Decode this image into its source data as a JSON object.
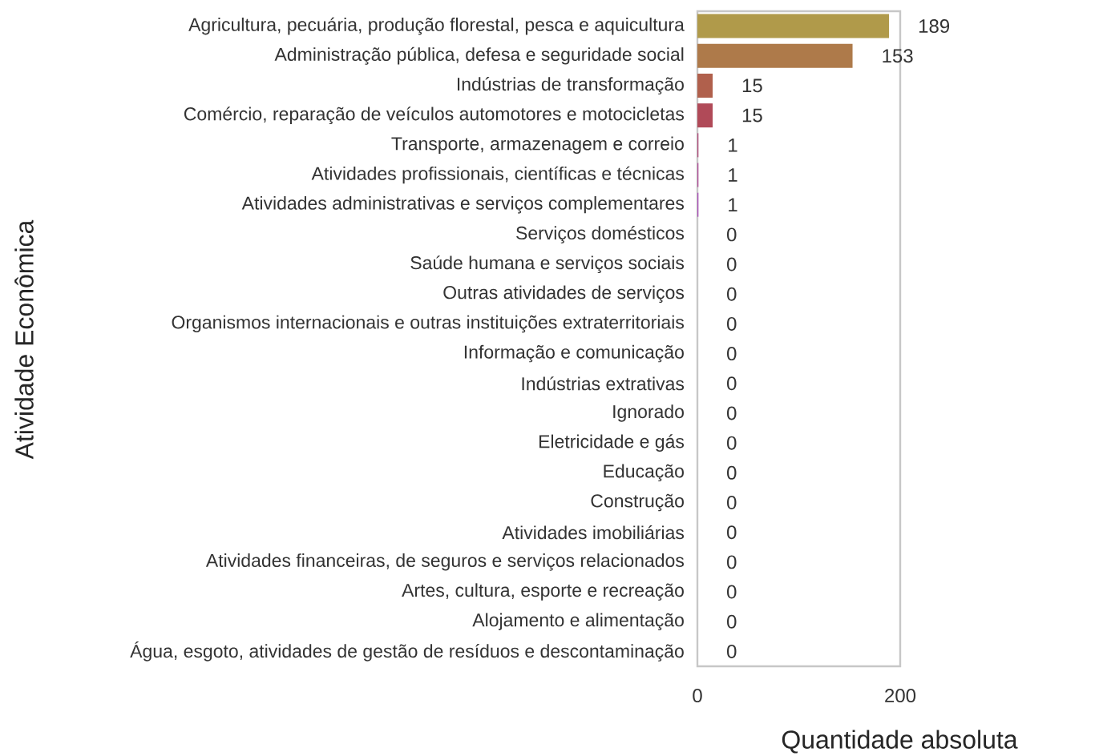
{
  "chart_data": {
    "type": "bar",
    "orientation": "horizontal",
    "xlabel": "Quantidade absoluta",
    "ylabel": "Atividade Econômica",
    "categories": [
      "Agricultura, pecuária, produção florestal, pesca e aquicultura",
      "Administração pública, defesa e seguridade social",
      "Indústrias de transformação",
      "Comércio, reparação de veículos automotores e motocicletas",
      "Transporte, armazenagem e correio",
      "Atividades profissionais, científicas e técnicas",
      "Atividades administrativas e serviços complementares",
      "Serviços domésticos",
      "Saúde humana e serviços sociais",
      "Outras atividades de serviços",
      "Organismos internacionais e outras instituições extraterritoriais",
      "Informação e comunicação",
      "Indústrias extrativas",
      "Ignorado",
      "Eletricidade e gás",
      "Educação",
      "Construção",
      "Atividades imobiliárias",
      "Atividades financeiras, de seguros e serviços relacionados",
      "Artes, cultura, esporte e recreação",
      "Alojamento e alimentação",
      "Água, esgoto, atividades de gestão de resíduos e descontaminação"
    ],
    "values": [
      189,
      153,
      15,
      15,
      1,
      1,
      1,
      0,
      0,
      0,
      0,
      0,
      0,
      0,
      0,
      0,
      0,
      0,
      0,
      0,
      0,
      0
    ],
    "colors": [
      "#b09a4a",
      "#ae7a4a",
      "#b0604c",
      "#b04a58",
      "#b0487a",
      "#b04a98",
      "#a84ab8",
      "#9a58c0",
      "#9060c0",
      "#8868c0",
      "#8070b8",
      "#7878b0",
      "#7080a8",
      "#6888a0",
      "#609098",
      "#609890",
      "#60a088",
      "#68a080",
      "#70a078",
      "#78a070",
      "#80a068",
      "#88a060"
    ],
    "xlim": [
      0,
      200
    ],
    "xticks": [
      0,
      200
    ],
    "data_labels": true
  }
}
